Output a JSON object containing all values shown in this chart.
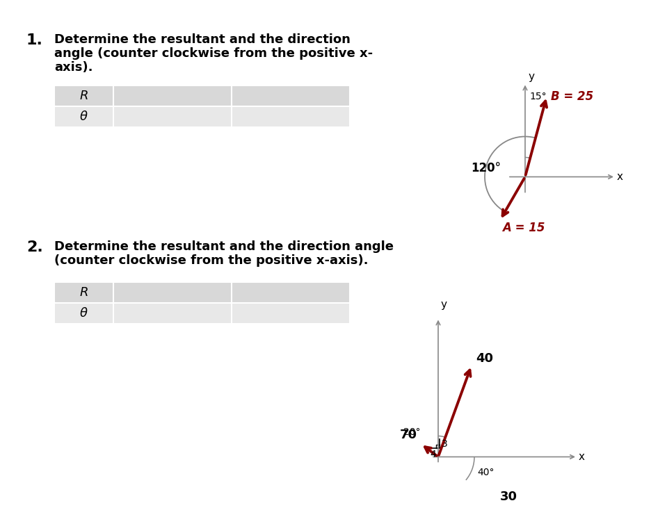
{
  "bg_color": "#ffffff",
  "arrow_color": "#8B0000",
  "axis_color": "#888888",
  "text_color": "#000000",
  "red_label_color": "#8B0000",
  "p1_num": "1.",
  "p1_text_line1": "Determine the resultant and the direction",
  "p1_text_line2": "angle (counter clockwise from the positive x-",
  "p1_text_line3": "axis).",
  "p2_num": "2.",
  "p2_text_line1": "Determine the resultant and the direction angle",
  "p2_text_line2": "(counter clockwise from the positive x-axis).",
  "table_rows": [
    "R",
    "θ"
  ],
  "p1_B_label": "B = 25",
  "p1_A_label": "A = 15",
  "p1_arc_label": "120°",
  "p1_angle15_label": "15°",
  "p2_label40": "40",
  "p2_label30": "30",
  "p2_label70": "70",
  "p2_label20": "20°",
  "p2_label40deg": "40°",
  "p2_label3": "3",
  "p2_label4": "4",
  "p2_x_label": "x",
  "p2_y_label": "y",
  "p1_x_label": "x",
  "p1_y_label": "y"
}
